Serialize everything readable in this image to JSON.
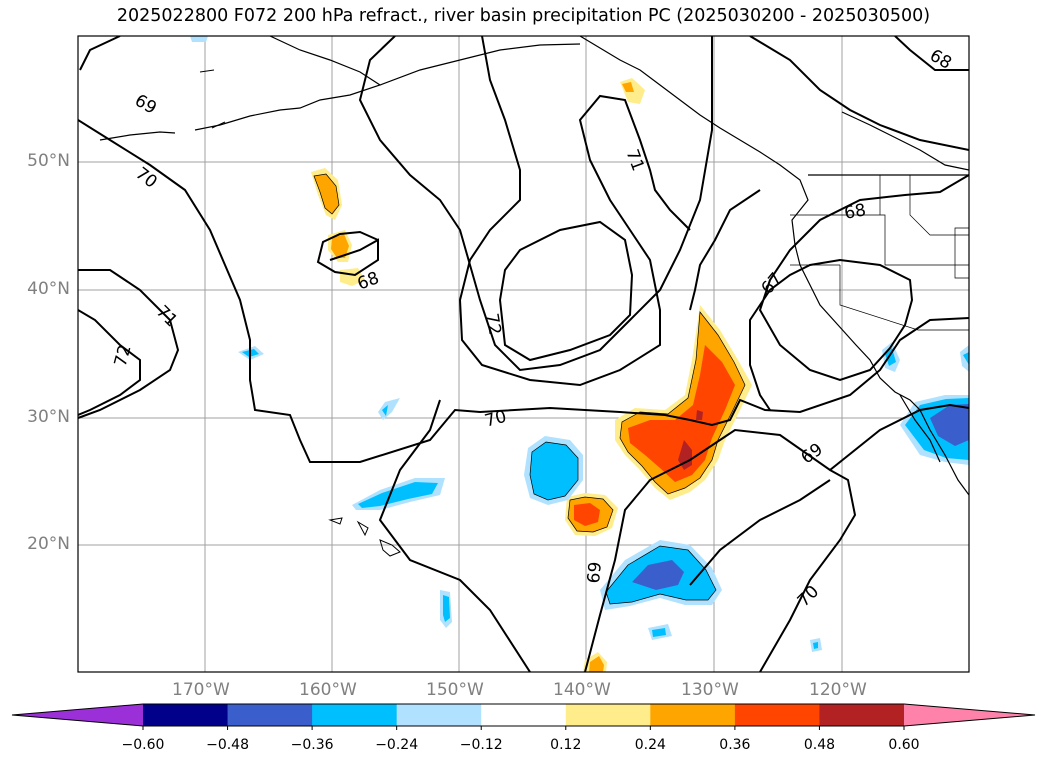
{
  "title": "2025022800 F072 200 hPa refract., river basin precipitation PC (2025030200 - 2025030500)",
  "lat_labels": [
    {
      "text": "50°N",
      "lat": 50
    },
    {
      "text": "40°N",
      "lat": 40
    },
    {
      "text": "30°N",
      "lat": 30
    },
    {
      "text": "20°N",
      "lat": 20
    }
  ],
  "lon_labels": [
    {
      "text": "170°W",
      "lon": -170
    },
    {
      "text": "160°W",
      "lon": -160
    },
    {
      "text": "150°W",
      "lon": -150
    },
    {
      "text": "140°W",
      "lon": -140
    },
    {
      "text": "130°W",
      "lon": -130
    },
    {
      "text": "120°W",
      "lon": -120
    }
  ],
  "contour_labels": [
    "69",
    "70",
    "71",
    "72",
    "68",
    "67",
    "68",
    "71",
    "72",
    "70",
    "69",
    "69",
    "70",
    "68"
  ],
  "colorbar": {
    "ticks": [
      "−0.60",
      "−0.48",
      "−0.36",
      "−0.24",
      "−0.12",
      "0.12",
      "0.24",
      "0.36",
      "0.48",
      "0.60"
    ],
    "colors": [
      "#9b30d9",
      "#00008b",
      "#3a5fcd",
      "#00bfff",
      "#b0e2ff",
      "#ffffff",
      "#ffec8b",
      "#ffa500",
      "#ff4500",
      "#b22222",
      "#ff82ab"
    ]
  },
  "fill_colors": {
    "yellow": "#ffec8b",
    "orange": "#ffa500",
    "red": "#ff4500",
    "darkred": "#b22222",
    "lightblue": "#b0e2ff",
    "blue": "#00bfff",
    "royal": "#3a5fcd"
  }
}
